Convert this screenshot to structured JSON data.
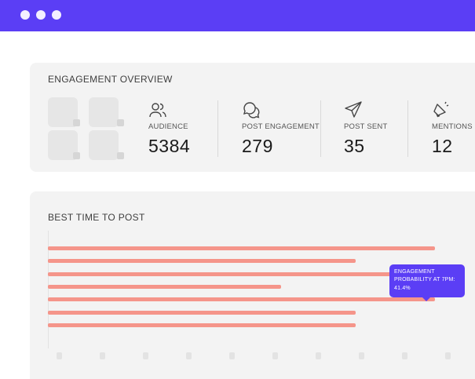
{
  "window": {
    "controls": [
      "close-dot",
      "minimize-dot",
      "maximize-dot"
    ],
    "accent_color": "#5b3ef5"
  },
  "overview": {
    "title": "ENGAGEMENT OVERVIEW",
    "stats": [
      {
        "icon": "users-icon",
        "label": "AUDIENCE",
        "value": "5384"
      },
      {
        "icon": "chat-bubbles-icon",
        "label": "POST ENGAGEMENT",
        "value": "279"
      },
      {
        "icon": "send-icon",
        "label": "POST SENT",
        "value": "35"
      },
      {
        "icon": "megaphone-icon",
        "label": "MENTIONS",
        "value": "12"
      }
    ]
  },
  "best_time": {
    "title": "BEST TIME TO POST",
    "bar_color": "#f5958a",
    "bars": [
      0.88,
      0.7,
      0.88,
      0.53,
      0.88,
      0.7,
      0.7
    ],
    "tooltip": {
      "line1": "ENGAGEMENT",
      "line2": "PROBABILITY AT 7PM:",
      "line3": "41.4%"
    }
  }
}
